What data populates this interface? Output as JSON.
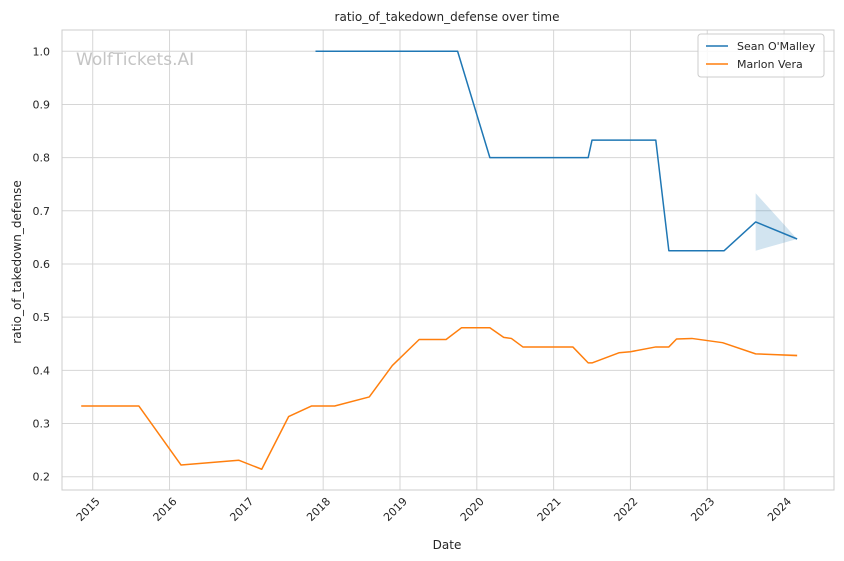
{
  "chart_data": {
    "type": "line",
    "title": "ratio_of_takedown_defense over time",
    "xlabel": "Date",
    "ylabel": "ratio_of_takedown_defense",
    "watermark": "WolfTickets.AI",
    "xlim": [
      2014.6,
      2024.65
    ],
    "ylim": [
      0.175,
      1.04
    ],
    "x_ticks": [
      2015,
      2016,
      2017,
      2018,
      2019,
      2020,
      2021,
      2022,
      2023,
      2024
    ],
    "x_tick_labels": [
      "2015",
      "2016",
      "2017",
      "2018",
      "2019",
      "2020",
      "2021",
      "2022",
      "2023",
      "2024"
    ],
    "y_ticks": [
      0.2,
      0.3,
      0.4,
      0.5,
      0.6,
      0.7,
      0.8,
      0.9,
      1.0
    ],
    "y_tick_labels": [
      "0.2",
      "0.3",
      "0.4",
      "0.5",
      "0.6",
      "0.7",
      "0.8",
      "0.9",
      "1.0"
    ],
    "grid": true,
    "legend_position": "top-right",
    "series": [
      {
        "name": "Sean O'Malley",
        "color": "#1f77b4",
        "x": [
          2017.9,
          2019.75,
          2020.17,
          2021.45,
          2021.5,
          2022.33,
          2022.5,
          2023.22,
          2023.63,
          2024.17
        ],
        "y": [
          1.0,
          1.0,
          0.8,
          0.8,
          0.833,
          0.833,
          0.625,
          0.625,
          0.679,
          0.647
        ],
        "band": {
          "x": [
            2023.63,
            2024.17
          ],
          "lower": [
            0.625,
            0.647
          ],
          "upper": [
            0.733,
            0.647
          ]
        }
      },
      {
        "name": "Marlon Vera",
        "color": "#ff7f0e",
        "x": [
          2014.85,
          2015.6,
          2016.15,
          2016.9,
          2017.2,
          2017.55,
          2017.85,
          2018.15,
          2018.6,
          2018.9,
          2019.25,
          2019.6,
          2019.8,
          2020.17,
          2020.35,
          2020.45,
          2020.6,
          2021.25,
          2021.45,
          2021.5,
          2021.85,
          2022.0,
          2022.33,
          2022.5,
          2022.6,
          2022.8,
          2023.2,
          2023.63,
          2024.17
        ],
        "y": [
          0.333,
          0.333,
          0.222,
          0.231,
          0.214,
          0.313,
          0.333,
          0.333,
          0.35,
          0.409,
          0.458,
          0.458,
          0.48,
          0.48,
          0.462,
          0.46,
          0.444,
          0.444,
          0.414,
          0.414,
          0.433,
          0.435,
          0.444,
          0.444,
          0.459,
          0.46,
          0.452,
          0.431,
          0.428
        ],
        "band": {
          "x": [
            2023.63,
            2024.17
          ],
          "lower": [
            0.431,
            0.425
          ],
          "upper": [
            0.431,
            0.43
          ]
        }
      }
    ]
  }
}
